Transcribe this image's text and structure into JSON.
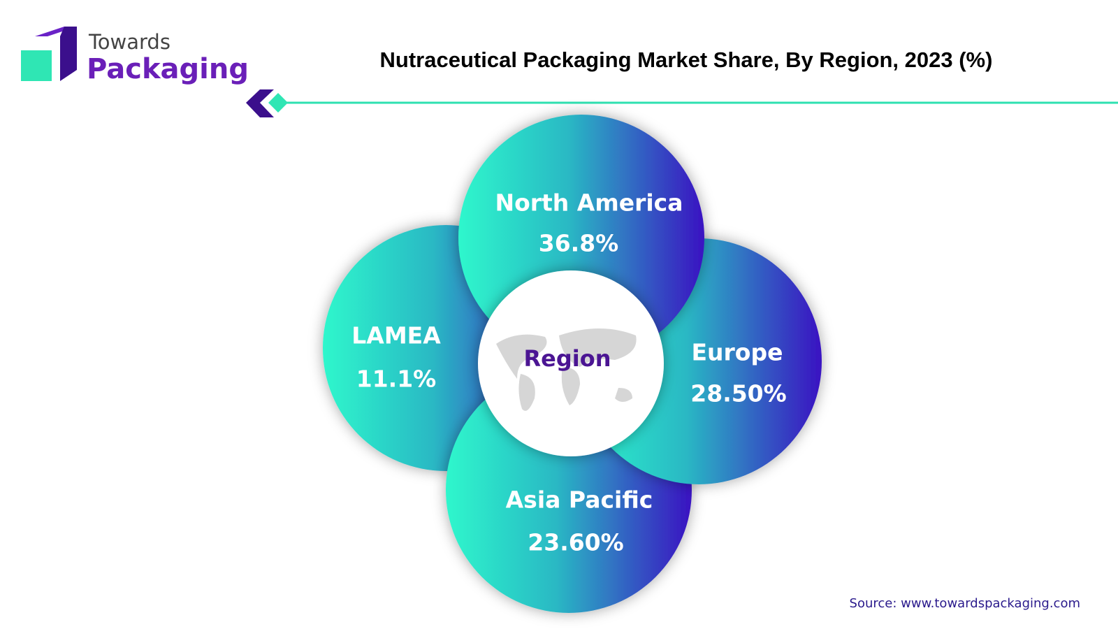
{
  "brand": {
    "line1": "Towards",
    "line2": "Packaging"
  },
  "chart_data": {
    "type": "circles",
    "title": "Nutraceutical Packaging Market Share, By Region, 2023 (%)",
    "categories": [
      "North America",
      "Europe",
      "Asia Pacific",
      "LAMEA"
    ],
    "values": [
      36.8,
      28.5,
      23.6,
      11.1
    ],
    "value_labels": [
      "36.8%",
      "28.50%",
      "23.60%",
      "11.1%"
    ],
    "center_label": "Region",
    "source": "Source: www.towardspackaging.com"
  }
}
